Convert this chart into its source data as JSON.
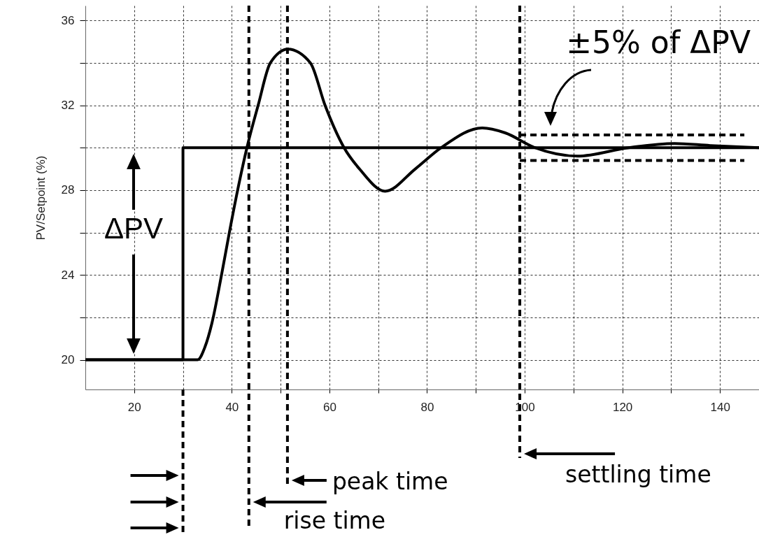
{
  "chart_data": {
    "type": "line",
    "ylabel": "PV/Setpoint (%)",
    "xlim": [
      10,
      148
    ],
    "ylim": [
      18.6,
      36.7
    ],
    "xticks": [
      20,
      {
        "value": 30,
        "label": null
      },
      40,
      {
        "value": 50,
        "label": null
      },
      60,
      {
        "value": 70,
        "label": null
      },
      80,
      {
        "value": 90,
        "label": null
      },
      100,
      {
        "value": 110,
        "label": null
      },
      120,
      {
        "value": 130,
        "label": null
      },
      140
    ],
    "yticks": [
      20,
      {
        "value": 22,
        "label": null
      },
      24,
      {
        "value": 26,
        "label": null
      },
      28,
      {
        "value": 30,
        "label": null
      },
      32,
      {
        "value": 34,
        "label": null
      },
      36
    ],
    "grid": true,
    "series": [
      {
        "type": "step",
        "color": "#000000",
        "x": [
          10,
          30,
          148
        ],
        "values": [
          20,
          30,
          30
        ]
      },
      {
        "color": "#000000",
        "x": [
          10,
          33,
          34.5,
          35.9,
          37.9,
          39.5,
          41.2,
          43.1,
          45.4,
          47.9,
          51.5,
          56.1,
          59.1,
          63,
          66.3,
          71.4,
          77.6,
          82.9,
          91.3,
          96,
          102.1,
          110.8,
          121.3,
          130.7,
          138,
          148
        ],
        "values": [
          20,
          20,
          20.6,
          21.7,
          24,
          26,
          28,
          30,
          32,
          34,
          34.65,
          34,
          32,
          30,
          28.96,
          27.95,
          29,
          30,
          30.93,
          30.7,
          30,
          29.6,
          30,
          30.2,
          30.1,
          30
        ]
      },
      {
        "line_style": "dashed",
        "color": "#000000",
        "x": [
          99,
          145
        ],
        "values": [
          30.6,
          30.6
        ]
      },
      {
        "line_style": "dashed",
        "color": "#000000",
        "x": [
          99,
          145
        ],
        "values": [
          29.4,
          29.4
        ]
      }
    ],
    "ref_lines": [
      {
        "axis": "x",
        "value": 30,
        "label": null,
        "line_style": "dashed"
      },
      {
        "axis": "x",
        "value": 43.5,
        "label": "rise time",
        "line_style": "dashed"
      },
      {
        "axis": "x",
        "value": 51.4,
        "label": "peak time",
        "line_style": "dashed"
      },
      {
        "axis": "x",
        "value": 99,
        "label": "settling time",
        "line_style": "dashed"
      }
    ],
    "annotations": [
      "ΔPV",
      "±5% of ΔPV"
    ]
  }
}
